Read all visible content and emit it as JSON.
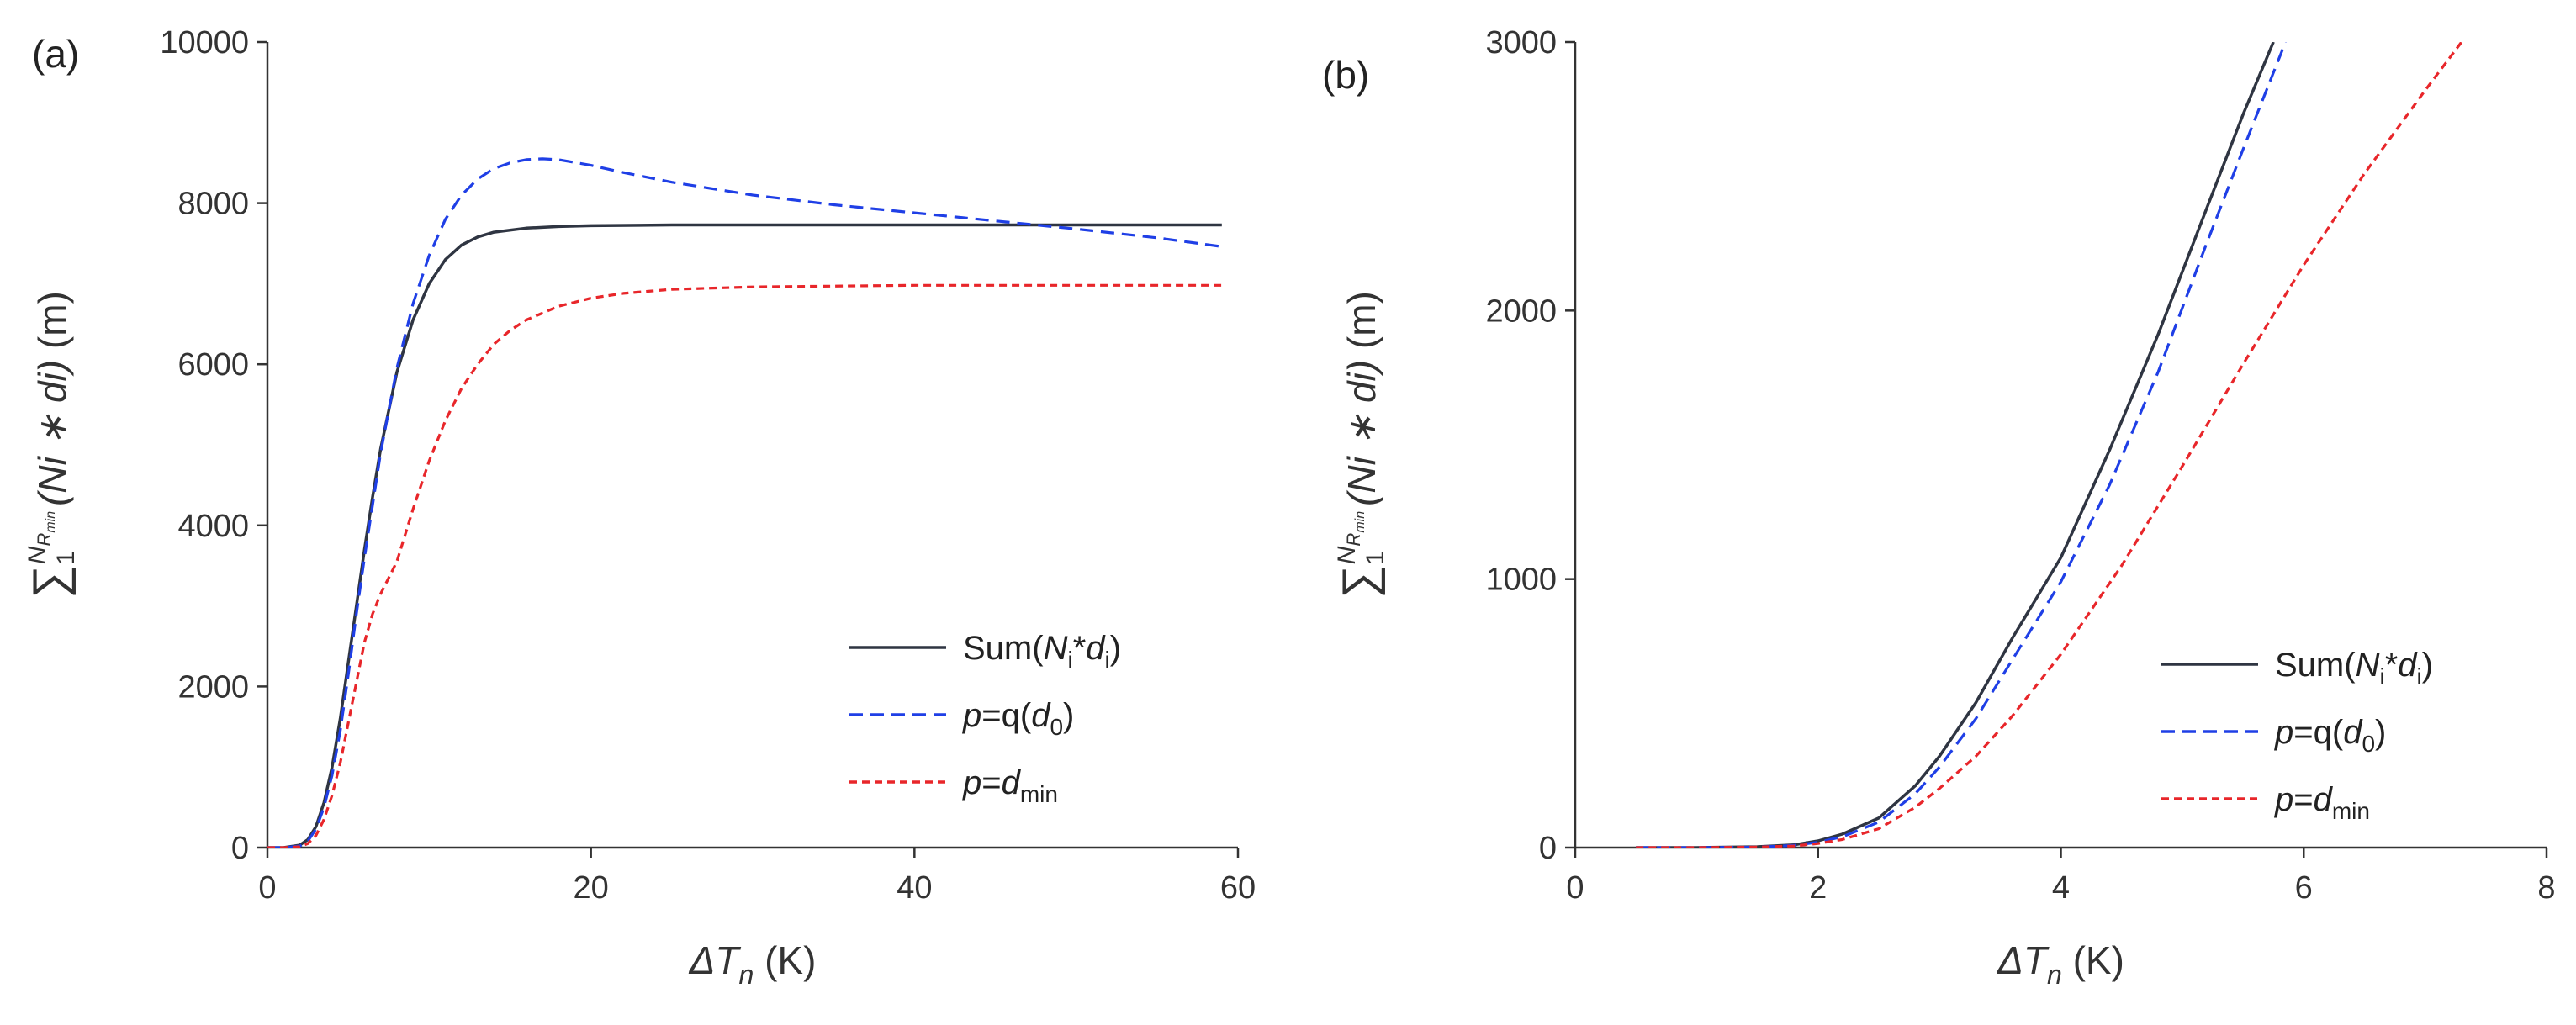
{
  "chart_data": [
    {
      "panel": "(a)",
      "type": "line",
      "xlabel": "ΔT_n (K)",
      "xlabel_parts": {
        "delta": "ΔT",
        "sub": "n",
        "unit": " (K)"
      },
      "ylabel": "Σ_1^{N_R_min} (Ni * di) (m)",
      "ylabel_parts": {
        "sum": "∑",
        "lower": "1",
        "upper": "N",
        "upper_sub": "R",
        "upper_subsub": "min",
        "body": "(Ni ∗ di)",
        "unit": " (m)"
      },
      "xlim": [
        0,
        60
      ],
      "ylim": [
        0,
        10000
      ],
      "xticks": [
        "0",
        "20",
        "40",
        "60"
      ],
      "yticks": [
        "0",
        "2000",
        "4000",
        "6000",
        "8000",
        "10000"
      ],
      "grid": false,
      "legend_position": "bottom-right",
      "series": [
        {
          "name": "Sum(Ni*di)",
          "legend_parts": {
            "pre": "Sum(",
            "a": "N",
            "a_sub": "i",
            "mid": "*",
            "b": "d",
            "b_sub": "i",
            "post": ")"
          },
          "color": "#2f3542",
          "dash": "solid",
          "x": [
            0,
            1,
            2,
            2.5,
            3,
            3.5,
            4,
            4.5,
            5,
            5.5,
            6,
            6.5,
            7,
            8,
            9,
            10,
            11,
            12,
            13,
            14,
            16,
            18,
            20,
            25,
            30,
            40,
            50,
            59
          ],
          "y": [
            0,
            0,
            30,
            100,
            260,
            560,
            1000,
            1600,
            2300,
            3000,
            3700,
            4350,
            4950,
            5900,
            6550,
            7000,
            7300,
            7480,
            7580,
            7640,
            7690,
            7710,
            7720,
            7730,
            7730,
            7730,
            7730,
            7730
          ]
        },
        {
          "name": "p=q(d0)",
          "legend_parts": {
            "a": "p",
            "mid": "=q(",
            "b": "d",
            "b_sub": "0",
            "post": ")"
          },
          "color": "#1f3fe6",
          "dash": "dashed",
          "x": [
            0,
            1,
            2,
            2.5,
            3,
            3.5,
            4,
            4.5,
            5,
            5.5,
            6,
            6.5,
            7,
            8,
            9,
            10,
            11,
            12,
            13,
            14,
            15,
            16,
            17,
            18,
            20,
            22,
            25,
            30,
            35,
            40,
            45,
            50,
            55,
            59
          ],
          "y": [
            0,
            0,
            20,
            80,
            230,
            500,
            900,
            1450,
            2150,
            2900,
            3600,
            4250,
            4900,
            5950,
            6750,
            7350,
            7800,
            8100,
            8300,
            8430,
            8500,
            8540,
            8550,
            8540,
            8470,
            8380,
            8260,
            8100,
            7980,
            7880,
            7780,
            7680,
            7570,
            7460
          ]
        },
        {
          "name": "p=dmin",
          "legend_parts": {
            "a": "p",
            "mid": "=",
            "b": "d",
            "b_sub": "min",
            "post": ""
          },
          "color": "#e8262a",
          "dash": "dashed",
          "x": [
            0,
            1,
            2,
            2.5,
            3,
            3.5,
            4,
            4.5,
            5,
            5.5,
            6,
            6.5,
            7,
            7.5,
            8,
            9,
            10,
            11,
            12,
            13,
            14,
            15,
            16,
            18,
            20,
            22,
            25,
            30,
            40,
            50,
            59
          ],
          "y": [
            0,
            0,
            10,
            50,
            150,
            350,
            650,
            1050,
            1550,
            2050,
            2550,
            2900,
            3150,
            3350,
            3550,
            4200,
            4800,
            5300,
            5700,
            6000,
            6250,
            6420,
            6550,
            6720,
            6820,
            6880,
            6930,
            6960,
            6980,
            6980,
            6980
          ]
        }
      ]
    },
    {
      "panel": "(b)",
      "type": "line",
      "xlabel": "ΔT_n (K)",
      "xlabel_parts": {
        "delta": "ΔT",
        "sub": "n",
        "unit": " (K)"
      },
      "ylabel": "Σ_1^{N_R_min} (Ni * di) (m)",
      "ylabel_parts": {
        "sum": "∑",
        "lower": "1",
        "upper": "N",
        "upper_sub": "R",
        "upper_subsub": "min",
        "body": "(Ni ∗ di)",
        "unit": " (m)"
      },
      "xlim": [
        0,
        8
      ],
      "ylim": [
        0,
        3000
      ],
      "xticks": [
        "0",
        "2",
        "4",
        "6",
        "8"
      ],
      "yticks": [
        "0",
        "1000",
        "2000",
        "3000"
      ],
      "grid": false,
      "legend_position": "bottom-right",
      "series": [
        {
          "name": "Sum(Ni*di)",
          "legend_parts": {
            "pre": "Sum(",
            "a": "N",
            "a_sub": "i",
            "mid": "*",
            "b": "d",
            "b_sub": "i",
            "post": ")"
          },
          "color": "#2f3542",
          "dash": "solid",
          "x": [
            0.5,
            1,
            1.5,
            1.8,
            2,
            2.2,
            2.5,
            2.8,
            3,
            3.3,
            3.6,
            4,
            4.4,
            4.8,
            5.2,
            5.5,
            5.75
          ],
          "y": [
            0,
            0,
            3,
            10,
            25,
            50,
            110,
            230,
            340,
            540,
            780,
            1080,
            1480,
            1910,
            2380,
            2730,
            3000
          ]
        },
        {
          "name": "p=q(d0)",
          "legend_parts": {
            "a": "p",
            "mid": "=q(",
            "b": "d",
            "b_sub": "0",
            "post": ")"
          },
          "color": "#1f3fe6",
          "dash": "dashed",
          "x": [
            0.5,
            1,
            1.5,
            1.8,
            2,
            2.2,
            2.5,
            2.8,
            3,
            3.3,
            3.6,
            4,
            4.4,
            4.8,
            5.2,
            5.5,
            5.85
          ],
          "y": [
            0,
            0,
            2,
            8,
            20,
            40,
            95,
            200,
            300,
            480,
            700,
            990,
            1350,
            1770,
            2250,
            2600,
            3000
          ]
        },
        {
          "name": "p=dmin",
          "legend_parts": {
            "a": "p",
            "mid": "=",
            "b": "d",
            "b_sub": "min",
            "post": ""
          },
          "color": "#e8262a",
          "dash": "dashed",
          "x": [
            0.5,
            1,
            1.5,
            1.8,
            2,
            2.2,
            2.5,
            2.8,
            3,
            3.3,
            3.6,
            4,
            4.5,
            5,
            5.5,
            6,
            6.5,
            7,
            7.3
          ],
          "y": [
            0,
            0,
            2,
            6,
            15,
            30,
            70,
            150,
            220,
            340,
            490,
            720,
            1050,
            1420,
            1800,
            2170,
            2510,
            2820,
            3000
          ]
        }
      ]
    }
  ]
}
